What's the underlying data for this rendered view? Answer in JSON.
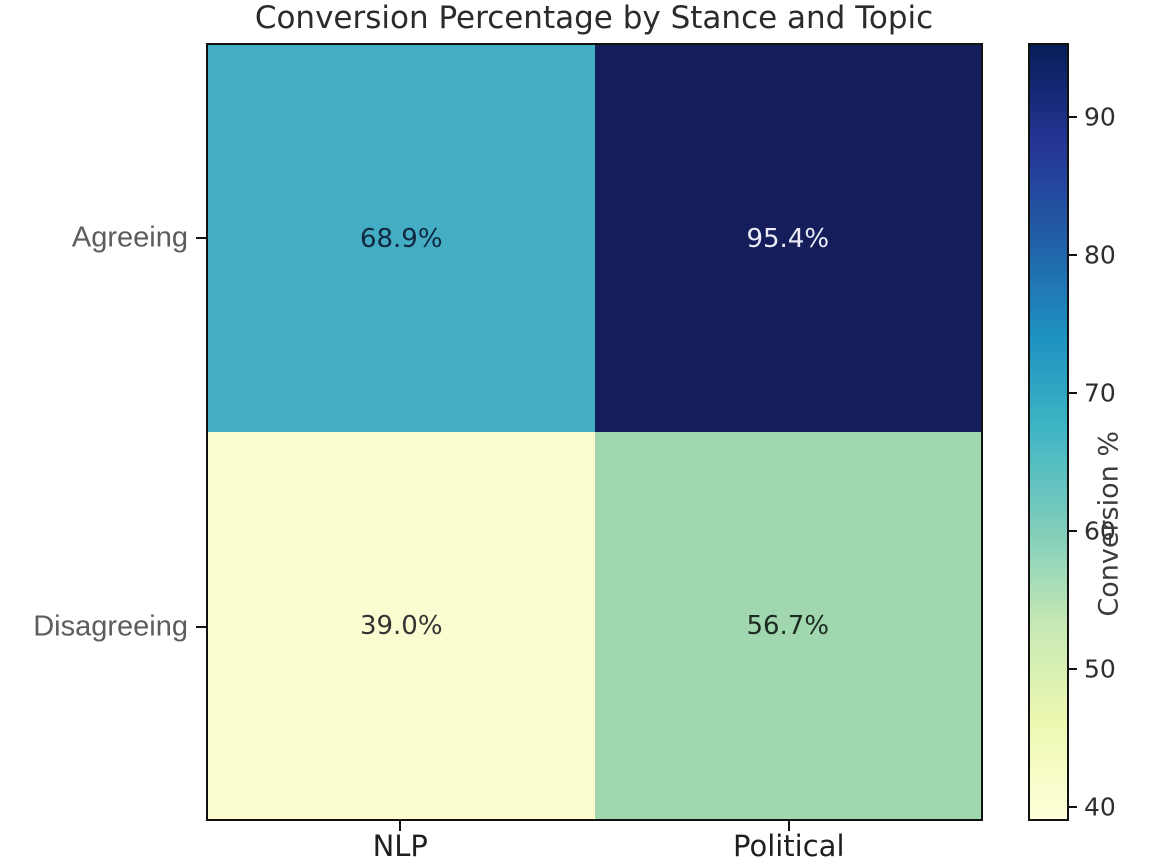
{
  "title": "Conversion Percentage by Stance and Topic",
  "chart_data": {
    "type": "heatmap",
    "title": "Conversion Percentage by Stance and Topic",
    "rows": [
      "Agreeing",
      "Disagreeing"
    ],
    "columns": [
      "NLP",
      "Political"
    ],
    "values": [
      [
        68.9,
        95.4
      ],
      [
        39.0,
        56.7
      ]
    ],
    "cell_labels": [
      [
        "68.9%",
        "95.4%"
      ],
      [
        "39.0%",
        "56.7%"
      ]
    ],
    "cell_colors": [
      [
        "#44adc4",
        "#161d5b"
      ],
      [
        "#fbfdd1",
        "#a0d7af"
      ]
    ],
    "cell_text_colors": [
      [
        "#10283f",
        "#eaebf5"
      ],
      [
        "#333333",
        "#1d2b23"
      ]
    ],
    "xlabel": "",
    "ylabel": "",
    "colorbar": {
      "label": "Conversion %",
      "ticks": [
        40,
        50,
        60,
        70,
        80,
        90
      ],
      "vmin": 39.0,
      "vmax": 95.4,
      "colormap_name": "YlGnBu",
      "gradient_stops": [
        "#ffffd9",
        "#edf8b1",
        "#c7e9b4",
        "#7fcdbb",
        "#41b6c4",
        "#1d91c0",
        "#225ea8",
        "#253494",
        "#081d58"
      ]
    }
  }
}
